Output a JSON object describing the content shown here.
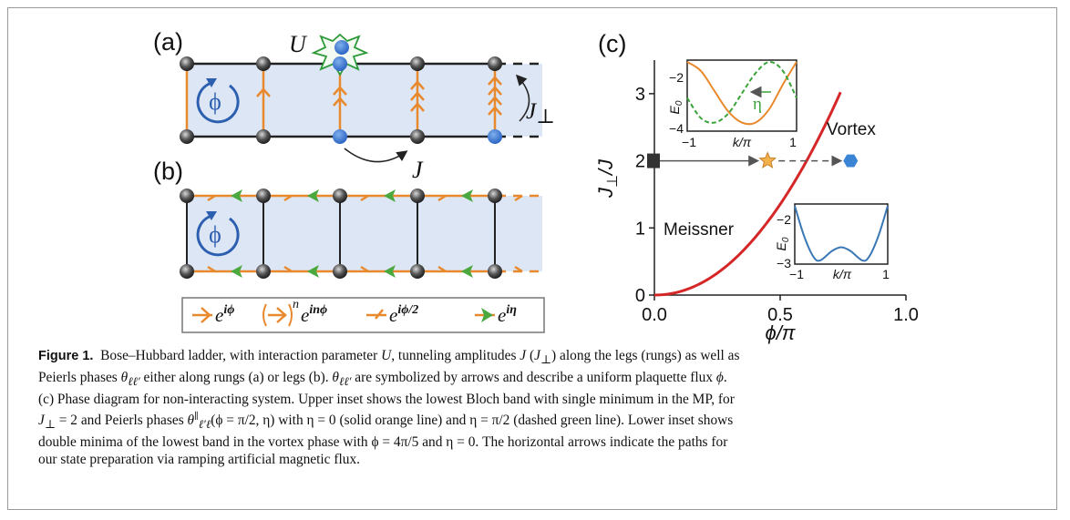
{
  "panels": {
    "a": {
      "label": "(a)",
      "interaction_label": "U",
      "rung_label": "J",
      "rung_sub": "⊥",
      "leg_label": "J",
      "flux_symbol": "ϕ"
    },
    "b": {
      "label": "(b)",
      "flux_symbol": "ϕ"
    },
    "legend": {
      "items": [
        {
          "glyph": "orange-arrow",
          "text": "e",
          "exp": "iϕ"
        },
        {
          "glyph": "bracket-arrow-n",
          "power": "n",
          "text": "e",
          "exp": "inϕ"
        },
        {
          "glyph": "half-arrow",
          "text": "e",
          "exp": "iϕ/2"
        },
        {
          "glyph": "green-arrow",
          "text": "e",
          "exp": "iη"
        }
      ]
    },
    "c": {
      "label": "(c)",
      "meissner_label": "Meissner",
      "vortex_label": "Vortex",
      "xlabel": "ϕ/π",
      "ylabel": "J⊥/J",
      "inset_upper": {
        "ylabel": "E0",
        "xlabel": "k/π",
        "eta_label": "η",
        "xticks": [
          "−1",
          "1"
        ],
        "yticks": [
          "−2",
          "−4"
        ]
      },
      "inset_lower": {
        "ylabel": "E0",
        "xlabel": "k/π",
        "xticks": [
          "−1",
          "1"
        ],
        "yticks": [
          "−2",
          "−3"
        ]
      }
    }
  },
  "chart_data": [
    {
      "type": "line",
      "title": "",
      "xlabel": "ϕ/π",
      "ylabel": "J⊥/J",
      "xlim": [
        0,
        1
      ],
      "ylim": [
        0,
        3.5
      ],
      "xticks": [
        "0.0",
        "0.5",
        "1.0"
      ],
      "yticks": [
        "0",
        "1",
        "2",
        "3"
      ],
      "series": [
        {
          "x": [
            0,
            0.1,
            0.2,
            0.3,
            0.4,
            0.5,
            0.6,
            0.65,
            0.7,
            0.74
          ],
          "y": [
            0,
            0.02,
            0.17,
            0.42,
            0.8,
            1.32,
            2.0,
            2.45,
            2.97,
            3.5
          ],
          "color": "#d62728"
        }
      ],
      "path": {
        "y": 2,
        "x_start": 0,
        "x_star": 0.45,
        "x_end": 0.78
      },
      "regions": [
        "Meissner",
        "Vortex"
      ]
    },
    {
      "type": "line",
      "title": "",
      "xlabel": "k/π",
      "ylabel": "E0",
      "xlim": [
        -1,
        1
      ],
      "ylim": [
        -4,
        -1
      ],
      "series": [
        {
          "x": [
            -1,
            -0.75,
            -0.5,
            -0.25,
            0,
            0.25,
            0.5,
            0.75,
            1
          ],
          "y": [
            -1.0,
            -1.4,
            -2.3,
            -3.2,
            -3.7,
            -3.7,
            -3.1,
            -2.0,
            -1.0
          ],
          "color": "#e8892d",
          "style": "solid"
        },
        {
          "x": [
            -1,
            -0.75,
            -0.5,
            -0.25,
            0,
            0.25,
            0.5,
            0.75,
            1
          ],
          "y": [
            -2.6,
            -3.5,
            -3.7,
            -3.3,
            -2.4,
            -1.5,
            -1.0,
            -1.4,
            -2.6
          ],
          "color": "#3aa33a",
          "style": "dashed"
        }
      ]
    },
    {
      "type": "line",
      "title": "",
      "xlabel": "k/π",
      "ylabel": "E0",
      "xlim": [
        -1,
        1
      ],
      "ylim": [
        -3,
        -1.5
      ],
      "series": [
        {
          "x": [
            -1,
            -0.8,
            -0.6,
            -0.45,
            -0.2,
            0,
            0.2,
            0.45,
            0.6,
            0.8,
            1
          ],
          "y": [
            -1.5,
            -2.3,
            -2.85,
            -2.95,
            -2.7,
            -2.6,
            -2.7,
            -2.95,
            -2.85,
            -2.3,
            -1.5
          ],
          "color": "#3a78b5"
        }
      ]
    }
  ],
  "caption": {
    "fig_label": "Figure 1.",
    "p1": "Bose–Hubbard ladder, with interaction parameter ",
    "U": "U",
    "p2": ", tunneling amplitudes ",
    "J1": "J",
    "p3": " (",
    "J2": "J",
    "perp": "⊥",
    "p4": ") along the legs (rungs) as well as",
    "p5": "Peierls phases ",
    "theta": "θ",
    "sub_ll": "ℓℓ′",
    "p6": " either along rungs (a) or legs (b). ",
    "theta2": "θ",
    "sub_ll2": "ℓℓ′",
    "p7": " are symbolized by arrows and describe a uniform plaquette flux ",
    "phi": "ϕ",
    "p8": ".",
    "p9": "(c) Phase diagram for non-interacting system. Upper inset shows the lowest Bloch band with single minimum in the MP, for",
    "J3": "J",
    "perp2": "⊥",
    "p10": " = 2 and Peierls phases ",
    "theta3": "θ",
    "sup_par": "∥",
    "sub_ll3": "ℓ′ℓ",
    "p11": "(ϕ = π/2, η) with η = 0 (solid orange line) and η = π/2 (dashed green line). Lower inset shows",
    "p12": "double minima of the lowest band in the vortex phase with ϕ = 4π/5 and η = 0. The horizontal arrows indicate the paths for",
    "p13": "our state preparation via ramping artificial magnetic flux."
  }
}
